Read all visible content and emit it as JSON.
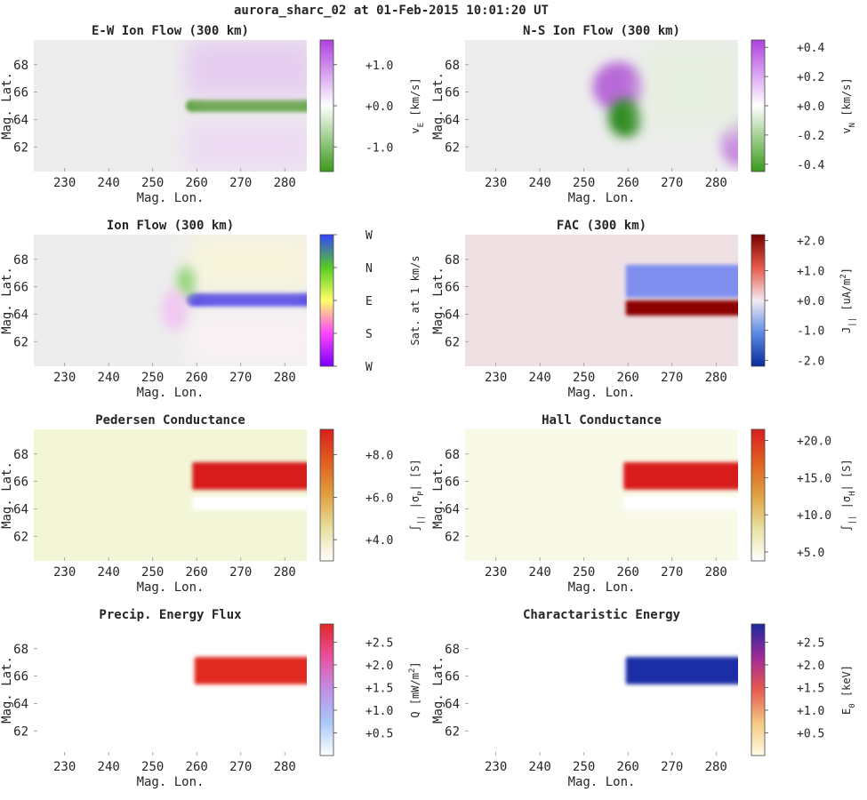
{
  "figure": {
    "title": "aurora_sharc_02 at 01-Feb-2015 10:01:20 UT"
  },
  "chart_data": [
    {
      "type": "heatmap",
      "title": "E-W Ion Flow (300 km)",
      "xlabel": "Mag. Lon.",
      "ylabel": "Mag. Lat.",
      "xlim": [
        223,
        285
      ],
      "ylim": [
        60.2,
        69.8
      ],
      "xticks": [
        "230",
        "240",
        "250",
        "260",
        "270",
        "280"
      ],
      "yticks": [
        "62",
        "64",
        "66",
        "68"
      ],
      "colorbar": {
        "label": "v",
        "label_sub": "E",
        "label_unit": " [km/s]",
        "ticks": [
          "+1.0",
          "+0.0",
          "-1.0"
        ],
        "tick_values": [
          1.0,
          0.0,
          -1.0
        ],
        "range": [
          -1.6,
          1.6
        ],
        "colors": [
          "#3a9a1a",
          "#ffffff",
          "#b040e0"
        ]
      },
      "features": [
        {
          "kind": "band",
          "lon": [
            257.5,
            285
          ],
          "lat": [
            64.55,
            65.45
          ],
          "color": "#4a9e28"
        },
        {
          "kind": "wash",
          "lon": [
            257.5,
            285
          ],
          "lat": [
            65.6,
            69.8
          ],
          "color": "#e6cdf0"
        },
        {
          "kind": "wash",
          "lon": [
            257.5,
            285
          ],
          "lat": [
            60.2,
            63.9
          ],
          "color": "#eddbf3"
        }
      ]
    },
    {
      "type": "heatmap",
      "title": "N-S Ion Flow (300 km)",
      "xlabel": "Mag. Lon.",
      "ylabel": "Mag. Lat.",
      "xlim": [
        223,
        285
      ],
      "ylim": [
        60.2,
        69.8
      ],
      "xticks": [
        "230",
        "240",
        "250",
        "260",
        "270",
        "280"
      ],
      "yticks": [
        "62",
        "64",
        "66",
        "68"
      ],
      "colorbar": {
        "label": "v",
        "label_sub": "N",
        "label_unit": " [km/s]",
        "ticks": [
          "+0.4",
          "+0.2",
          "+0.0",
          "-0.2",
          "-0.4"
        ],
        "tick_values": [
          0.4,
          0.2,
          0.0,
          -0.2,
          -0.4
        ],
        "range": [
          -0.45,
          0.45
        ],
        "colors": [
          "#3a9a1a",
          "#ffffff",
          "#b040e0"
        ]
      },
      "features": [
        {
          "kind": "blob",
          "lon": 258,
          "lat": 66.4,
          "rx": 6,
          "ry": 1.8,
          "color": "#b86ad8"
        },
        {
          "kind": "blob",
          "lon": 259.5,
          "lat": 64.1,
          "rx": 4,
          "ry": 1.4,
          "color": "#2f8a22"
        },
        {
          "kind": "blob",
          "lon": 285,
          "lat": 62.4,
          "rx": 4,
          "ry": 1.8,
          "color": "#c78ae0"
        },
        {
          "kind": "wash",
          "lon": [
            263,
            285
          ],
          "lat": [
            63,
            69.8
          ],
          "color": "#e7efe2"
        }
      ]
    },
    {
      "type": "heatmap",
      "title": "Ion Flow (300 km)",
      "xlabel": "Mag. Lon.",
      "ylabel": "Mag. Lat.",
      "xlim": [
        223,
        285
      ],
      "ylim": [
        60.2,
        69.8
      ],
      "xticks": [
        "230",
        "240",
        "250",
        "260",
        "270",
        "280"
      ],
      "yticks": [
        "62",
        "64",
        "66",
        "68"
      ],
      "colorbar": {
        "label": "Sat. at 1 km/s",
        "ticks": [
          "W",
          "N",
          "E",
          "S",
          "W"
        ],
        "tick_values": [
          1,
          0.75,
          0.5,
          0.25,
          0
        ],
        "range": [
          0,
          1
        ],
        "colors": [
          "#7a00ff",
          "#ff44ff",
          "#ffff66",
          "#55cc22",
          "#3344ff"
        ]
      },
      "features": [
        {
          "kind": "band",
          "lon": [
            257.5,
            285
          ],
          "lat": [
            64.55,
            65.55
          ],
          "color": "#2a1ee6"
        },
        {
          "kind": "wash",
          "lon": [
            258,
            285
          ],
          "lat": [
            65.7,
            69.8
          ],
          "color": "#f7f4dc"
        },
        {
          "kind": "wash",
          "lon": [
            258,
            285
          ],
          "lat": [
            60.2,
            64.2
          ],
          "color": "#f9f2f4"
        },
        {
          "kind": "blob",
          "lon": 257.5,
          "lat": 66.3,
          "rx": 2,
          "ry": 1.2,
          "color": "#96d47c"
        },
        {
          "kind": "blob",
          "lon": 255,
          "lat": 64.3,
          "rx": 3,
          "ry": 1.5,
          "color": "#f0c8f0"
        }
      ]
    },
    {
      "type": "heatmap",
      "title": "FAC (300 km)",
      "xlabel": "Mag. Lon.",
      "ylabel": "Mag. Lat.",
      "xlim": [
        223,
        285
      ],
      "ylim": [
        60.2,
        69.8
      ],
      "xticks": [
        "230",
        "240",
        "250",
        "260",
        "270",
        "280"
      ],
      "yticks": [
        "62",
        "64",
        "66",
        "68"
      ],
      "background": "#efe0e4",
      "colorbar": {
        "label": "J",
        "label_sub": "||",
        "label_unit": " [uA/m",
        "label_sup": "2",
        "label_end": "]",
        "ticks": [
          "+2.0",
          "+1.0",
          "+0.0",
          "-1.0",
          "-2.0"
        ],
        "tick_values": [
          2.0,
          1.0,
          0.0,
          -1.0,
          -2.0
        ],
        "range": [
          -2.2,
          2.2
        ],
        "colors": [
          "#0a2a9a",
          "#5a8ae6",
          "#f4eaf0",
          "#e85a4a",
          "#7a0000"
        ]
      },
      "features": [
        {
          "kind": "rect",
          "lon": [
            259.5,
            285
          ],
          "lat": [
            65.2,
            67.6
          ],
          "color": "#7f8ff0"
        },
        {
          "kind": "rect",
          "lon": [
            259.5,
            285
          ],
          "lat": [
            63.9,
            65.0
          ],
          "color": "#8c0000"
        }
      ]
    },
    {
      "type": "heatmap",
      "title": "Pedersen Conductance",
      "xlabel": "Mag. Lon.",
      "ylabel": "Mag. Lat.",
      "xlim": [
        223,
        285
      ],
      "ylim": [
        60.2,
        69.8
      ],
      "xticks": [
        "230",
        "240",
        "250",
        "260",
        "270",
        "280"
      ],
      "yticks": [
        "62",
        "64",
        "66",
        "68"
      ],
      "background": "#f2f5d6",
      "colorbar": {
        "label": "∫",
        "label_sub": "||",
        "label_unit": " |σ",
        "label_sub2": "P",
        "label_end": "| [S]",
        "ticks": [
          "+8.0",
          "+6.0",
          "+4.0"
        ],
        "tick_values": [
          8.0,
          6.0,
          4.0
        ],
        "range": [
          3.0,
          9.2
        ],
        "colors": [
          "#ffffff",
          "#e8e0a0",
          "#e0a040",
          "#e06020",
          "#d81e1e"
        ]
      },
      "features": [
        {
          "kind": "rect",
          "lon": [
            259,
            285
          ],
          "lat": [
            65.4,
            67.4
          ],
          "color": "#d81e1e"
        },
        {
          "kind": "rect",
          "lon": [
            259,
            285
          ],
          "lat": [
            63.9,
            64.9
          ],
          "color": "#ffffff"
        }
      ]
    },
    {
      "type": "heatmap",
      "title": "Hall Conductance",
      "xlabel": "Mag. Lon.",
      "ylabel": "Mag. Lat.",
      "xlim": [
        223,
        285
      ],
      "ylim": [
        60.2,
        69.8
      ],
      "xticks": [
        "230",
        "240",
        "250",
        "260",
        "270",
        "280"
      ],
      "yticks": [
        "62",
        "64",
        "66",
        "68"
      ],
      "background": "#f8f9e6",
      "colorbar": {
        "label": "∫",
        "label_sub": "||",
        "label_unit": " |σ",
        "label_sub2": "H",
        "label_end": "| [S]",
        "ticks": [
          "+20.0",
          "+15.0",
          "+10.0",
          "+5.0"
        ],
        "tick_values": [
          20,
          15,
          10,
          5
        ],
        "range": [
          3.8,
          21.5
        ],
        "colors": [
          "#ffffff",
          "#e8e0a0",
          "#e0a040",
          "#e06020",
          "#d81e1e"
        ]
      },
      "features": [
        {
          "kind": "rect",
          "lon": [
            259,
            285
          ],
          "lat": [
            65.4,
            67.4
          ],
          "color": "#d81e1e"
        },
        {
          "kind": "rect",
          "lon": [
            259,
            285
          ],
          "lat": [
            63.9,
            64.9
          ],
          "color": "#ffffff"
        }
      ]
    },
    {
      "type": "heatmap",
      "title": "Precip. Energy Flux",
      "xlabel": "Mag. Lon.",
      "ylabel": "Mag. Lat.",
      "xlim": [
        223,
        285
      ],
      "ylim": [
        60.2,
        69.8
      ],
      "xticks": [
        "230",
        "240",
        "250",
        "260",
        "270",
        "280"
      ],
      "yticks": [
        "62",
        "64",
        "66",
        "68"
      ],
      "background": "#ffffff",
      "colorbar": {
        "label": "Q [mW/m",
        "label_sup": "2",
        "label_end": "]",
        "ticks": [
          "+2.5",
          "+2.0",
          "+1.5",
          "+1.0",
          "+0.5"
        ],
        "tick_values": [
          2.5,
          2.0,
          1.5,
          1.0,
          0.5
        ],
        "range": [
          0,
          2.9
        ],
        "colors": [
          "#ffffff",
          "#a8c8f8",
          "#c090e8",
          "#e850a0",
          "#e02828"
        ]
      },
      "features": [
        {
          "kind": "rect",
          "lon": [
            259.5,
            285
          ],
          "lat": [
            65.4,
            67.4
          ],
          "color": "#e02a22"
        }
      ]
    },
    {
      "type": "heatmap",
      "title": "Charactaristic Energy",
      "xlabel": "Mag. Lon.",
      "ylabel": "Mag. Lat.",
      "xlim": [
        223,
        285
      ],
      "ylim": [
        60.2,
        69.8
      ],
      "xticks": [
        "230",
        "240",
        "250",
        "260",
        "270",
        "280"
      ],
      "yticks": [
        "62",
        "64",
        "66",
        "68"
      ],
      "background": "#ffffff",
      "colorbar": {
        "label": "E",
        "label_sub": "0",
        "label_unit": " [keV]",
        "ticks": [
          "+2.5",
          "+2.0",
          "+1.5",
          "+1.0",
          "+0.5"
        ],
        "tick_values": [
          2.5,
          2.0,
          1.5,
          1.0,
          0.5
        ],
        "range": [
          0,
          2.9
        ],
        "colors": [
          "#fffbe6",
          "#f4c880",
          "#e85a50",
          "#a02898",
          "#1a2aa0"
        ]
      },
      "features": [
        {
          "kind": "rect",
          "lon": [
            259.5,
            285
          ],
          "lat": [
            65.4,
            67.4
          ],
          "color": "#1a2ea6"
        }
      ]
    }
  ]
}
